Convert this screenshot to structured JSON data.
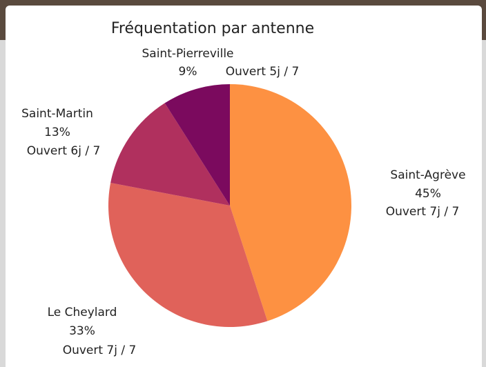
{
  "chart_data": {
    "type": "pie",
    "title": "Fréquentation par antenne",
    "categories": [
      "Saint-Agrève",
      "Le Cheylard",
      "Saint-Martin",
      "Saint-Pierreville"
    ],
    "values": [
      45,
      33,
      13,
      9
    ],
    "value_labels": [
      "45%",
      "33%",
      "13%",
      "9%"
    ],
    "details": [
      "Ouvert 7j / 7",
      "Ouvert 7j / 7",
      "Ouvert 6j / 7",
      "Ouvert 5j / 7"
    ],
    "colors": [
      "#fd9142",
      "#e0625a",
      "#b0305e",
      "#7b0a5e"
    ]
  }
}
